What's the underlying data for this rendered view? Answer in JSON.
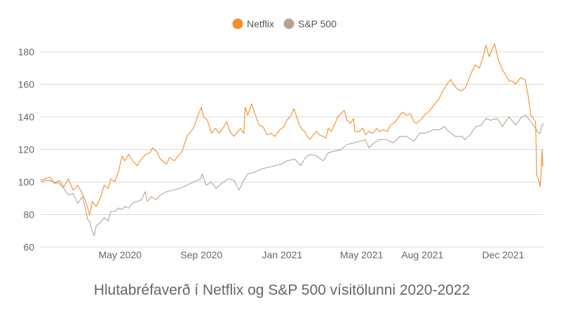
{
  "chart_data": {
    "type": "line",
    "title": "Hlutabréfaverð í Netflix og S&P 500 vísitölunni 2020-2022",
    "xlabel": "",
    "ylabel": "",
    "ylim": [
      60,
      185
    ],
    "yticks": [
      60,
      80,
      100,
      120,
      140,
      160,
      180
    ],
    "xlim": [
      "2020-01-02",
      "2022-01-31"
    ],
    "xticks": [
      {
        "date": "2020-05-01",
        "label": "May 2020"
      },
      {
        "date": "2020-09-01",
        "label": "Sep 2020"
      },
      {
        "date": "2021-01-01",
        "label": "Jan 2021"
      },
      {
        "date": "2021-05-01",
        "label": "May 2021"
      },
      {
        "date": "2021-08-01",
        "label": "Aug 2021"
      },
      {
        "date": "2021-12-01",
        "label": "Dec 2021"
      }
    ],
    "grid": true,
    "legend": "top-center",
    "series": [
      {
        "name": "Netflix",
        "color": "#f28e2b",
        "points": [
          [
            "2020-01-02",
            101
          ],
          [
            "2020-01-09",
            102
          ],
          [
            "2020-01-16",
            103
          ],
          [
            "2020-01-23",
            99
          ],
          [
            "2020-01-30",
            101
          ],
          [
            "2020-02-06",
            97
          ],
          [
            "2020-02-13",
            102
          ],
          [
            "2020-02-20",
            95
          ],
          [
            "2020-02-27",
            98
          ],
          [
            "2020-03-05",
            93
          ],
          [
            "2020-03-10",
            88
          ],
          [
            "2020-03-16",
            80
          ],
          [
            "2020-03-20",
            88
          ],
          [
            "2020-03-26",
            85
          ],
          [
            "2020-04-01",
            90
          ],
          [
            "2020-04-07",
            98
          ],
          [
            "2020-04-13",
            96
          ],
          [
            "2020-04-17",
            102
          ],
          [
            "2020-04-23",
            100
          ],
          [
            "2020-04-29",
            107
          ],
          [
            "2020-05-04",
            116
          ],
          [
            "2020-05-08",
            113
          ],
          [
            "2020-05-14",
            117
          ],
          [
            "2020-05-20",
            113
          ],
          [
            "2020-05-27",
            110
          ],
          [
            "2020-06-02",
            114
          ],
          [
            "2020-06-09",
            117
          ],
          [
            "2020-06-15",
            118
          ],
          [
            "2020-06-19",
            121
          ],
          [
            "2020-06-25",
            119
          ],
          [
            "2020-07-01",
            114
          ],
          [
            "2020-07-07",
            112
          ],
          [
            "2020-07-10",
            111
          ],
          [
            "2020-07-15",
            115
          ],
          [
            "2020-07-22",
            113
          ],
          [
            "2020-07-28",
            116
          ],
          [
            "2020-08-03",
            119
          ],
          [
            "2020-08-10",
            128
          ],
          [
            "2020-08-14",
            130
          ],
          [
            "2020-08-20",
            133
          ],
          [
            "2020-08-26",
            140
          ],
          [
            "2020-09-01",
            146
          ],
          [
            "2020-09-04",
            140
          ],
          [
            "2020-09-10",
            138
          ],
          [
            "2020-09-16",
            130
          ],
          [
            "2020-09-22",
            133
          ],
          [
            "2020-09-28",
            130
          ],
          [
            "2020-10-05",
            134
          ],
          [
            "2020-10-09",
            137
          ],
          [
            "2020-10-14",
            131
          ],
          [
            "2020-10-20",
            128
          ],
          [
            "2020-10-26",
            131
          ],
          [
            "2020-10-30",
            133
          ],
          [
            "2020-11-04",
            130
          ],
          [
            "2020-11-06",
            146
          ],
          [
            "2020-11-10",
            141
          ],
          [
            "2020-11-16",
            148
          ],
          [
            "2020-11-20",
            143
          ],
          [
            "2020-11-27",
            135
          ],
          [
            "2020-12-03",
            134
          ],
          [
            "2020-12-09",
            129
          ],
          [
            "2020-12-15",
            130
          ],
          [
            "2020-12-21",
            128
          ],
          [
            "2020-12-28",
            132
          ],
          [
            "2021-01-04",
            134
          ],
          [
            "2021-01-08",
            138
          ],
          [
            "2021-01-13",
            140
          ],
          [
            "2021-01-19",
            145
          ],
          [
            "2021-01-22",
            141
          ],
          [
            "2021-01-27",
            135
          ],
          [
            "2021-02-01",
            132
          ],
          [
            "2021-02-04",
            131
          ],
          [
            "2021-02-08",
            128
          ],
          [
            "2021-02-12",
            126
          ],
          [
            "2021-02-17",
            129
          ],
          [
            "2021-02-22",
            131
          ],
          [
            "2021-02-26",
            129
          ],
          [
            "2021-03-04",
            128
          ],
          [
            "2021-03-08",
            127
          ],
          [
            "2021-03-12",
            133
          ],
          [
            "2021-03-16",
            131
          ],
          [
            "2021-03-22",
            136
          ],
          [
            "2021-03-26",
            140
          ],
          [
            "2021-03-31",
            142
          ],
          [
            "2021-04-05",
            144
          ],
          [
            "2021-04-09",
            138
          ],
          [
            "2021-04-14",
            136
          ],
          [
            "2021-04-19",
            139
          ],
          [
            "2021-04-21",
            131
          ],
          [
            "2021-04-27",
            131
          ],
          [
            "2021-05-03",
            133
          ],
          [
            "2021-05-07",
            129
          ],
          [
            "2021-05-12",
            131
          ],
          [
            "2021-05-18",
            130
          ],
          [
            "2021-05-24",
            133
          ],
          [
            "2021-05-28",
            131
          ],
          [
            "2021-06-03",
            132
          ],
          [
            "2021-06-09",
            131
          ],
          [
            "2021-06-14",
            135
          ],
          [
            "2021-06-21",
            137
          ],
          [
            "2021-06-28",
            141
          ],
          [
            "2021-07-02",
            143
          ],
          [
            "2021-07-08",
            141
          ],
          [
            "2021-07-14",
            142
          ],
          [
            "2021-07-19",
            137
          ],
          [
            "2021-07-23",
            136
          ],
          [
            "2021-07-29",
            138
          ],
          [
            "2021-08-04",
            141
          ],
          [
            "2021-08-10",
            143
          ],
          [
            "2021-08-16",
            146
          ],
          [
            "2021-08-20",
            148
          ],
          [
            "2021-08-26",
            151
          ],
          [
            "2021-09-01",
            156
          ],
          [
            "2021-09-07",
            160
          ],
          [
            "2021-09-13",
            163
          ],
          [
            "2021-09-17",
            160
          ],
          [
            "2021-09-23",
            157
          ],
          [
            "2021-09-29",
            156
          ],
          [
            "2021-10-05",
            158
          ],
          [
            "2021-10-11",
            164
          ],
          [
            "2021-10-15",
            168
          ],
          [
            "2021-10-20",
            172
          ],
          [
            "2021-10-26",
            170
          ],
          [
            "2021-11-01",
            177
          ],
          [
            "2021-11-05",
            184
          ],
          [
            "2021-11-10",
            177
          ],
          [
            "2021-11-15",
            182
          ],
          [
            "2021-11-18",
            185
          ],
          [
            "2021-11-24",
            175
          ],
          [
            "2021-11-30",
            169
          ],
          [
            "2021-12-06",
            165
          ],
          [
            "2021-12-10",
            162
          ],
          [
            "2021-12-15",
            162
          ],
          [
            "2021-12-20",
            160
          ],
          [
            "2021-12-27",
            164
          ],
          [
            "2022-01-03",
            163
          ],
          [
            "2022-01-07",
            155
          ],
          [
            "2022-01-12",
            141
          ],
          [
            "2022-01-14",
            140
          ],
          [
            "2022-01-19",
            137
          ],
          [
            "2022-01-21",
            104
          ],
          [
            "2022-01-24",
            101
          ],
          [
            "2022-01-26",
            97
          ],
          [
            "2022-01-28",
            109
          ],
          [
            "2022-01-29",
            120
          ],
          [
            "2022-01-30",
            110
          ],
          [
            "2022-01-31",
            110
          ]
        ]
      },
      {
        "name": "S&P 500",
        "color": "#b8a393",
        "points": [
          [
            "2020-01-02",
            100
          ],
          [
            "2020-01-09",
            101
          ],
          [
            "2020-01-16",
            101
          ],
          [
            "2020-01-23",
            100
          ],
          [
            "2020-01-30",
            99
          ],
          [
            "2020-02-06",
            96
          ],
          [
            "2020-02-13",
            92
          ],
          [
            "2020-02-20",
            93
          ],
          [
            "2020-02-27",
            87
          ],
          [
            "2020-03-05",
            91
          ],
          [
            "2020-03-10",
            83
          ],
          [
            "2020-03-13",
            77
          ],
          [
            "2020-03-16",
            76
          ],
          [
            "2020-03-18",
            72
          ],
          [
            "2020-03-20",
            70
          ],
          [
            "2020-03-23",
            67
          ],
          [
            "2020-03-26",
            73
          ],
          [
            "2020-04-01",
            75
          ],
          [
            "2020-04-07",
            78
          ],
          [
            "2020-04-13",
            76
          ],
          [
            "2020-04-17",
            82
          ],
          [
            "2020-04-23",
            82
          ],
          [
            "2020-04-29",
            84
          ],
          [
            "2020-05-04",
            83
          ],
          [
            "2020-05-08",
            85
          ],
          [
            "2020-05-14",
            84
          ],
          [
            "2020-05-20",
            87
          ],
          [
            "2020-05-27",
            88
          ],
          [
            "2020-06-02",
            89
          ],
          [
            "2020-06-08",
            94
          ],
          [
            "2020-06-11",
            88
          ],
          [
            "2020-06-17",
            91
          ],
          [
            "2020-06-24",
            89
          ],
          [
            "2020-07-01",
            92
          ],
          [
            "2020-07-10",
            94
          ],
          [
            "2020-07-20",
            95
          ],
          [
            "2020-07-30",
            96
          ],
          [
            "2020-08-10",
            98
          ],
          [
            "2020-08-20",
            100
          ],
          [
            "2020-08-31",
            102
          ],
          [
            "2020-09-02",
            105
          ],
          [
            "2020-09-08",
            98
          ],
          [
            "2020-09-16",
            100
          ],
          [
            "2020-09-23",
            96
          ],
          [
            "2020-10-01",
            99
          ],
          [
            "2020-10-12",
            102
          ],
          [
            "2020-10-20",
            101
          ],
          [
            "2020-10-28",
            95
          ],
          [
            "2020-11-04",
            101
          ],
          [
            "2020-11-10",
            105
          ],
          [
            "2020-11-20",
            106
          ],
          [
            "2020-12-01",
            108
          ],
          [
            "2020-12-10",
            109
          ],
          [
            "2020-12-21",
            110
          ],
          [
            "2020-12-31",
            111
          ],
          [
            "2021-01-08",
            113
          ],
          [
            "2021-01-20",
            114
          ],
          [
            "2021-01-29",
            110
          ],
          [
            "2021-02-05",
            115
          ],
          [
            "2021-02-12",
            117
          ],
          [
            "2021-02-22",
            116
          ],
          [
            "2021-03-04",
            113
          ],
          [
            "2021-03-12",
            118
          ],
          [
            "2021-03-22",
            119
          ],
          [
            "2021-03-31",
            120
          ],
          [
            "2021-04-09",
            123
          ],
          [
            "2021-04-19",
            124
          ],
          [
            "2021-04-29",
            125
          ],
          [
            "2021-05-07",
            126
          ],
          [
            "2021-05-12",
            121
          ],
          [
            "2021-05-20",
            124
          ],
          [
            "2021-05-28",
            126
          ],
          [
            "2021-06-08",
            126
          ],
          [
            "2021-06-18",
            124
          ],
          [
            "2021-06-28",
            128
          ],
          [
            "2021-07-08",
            128
          ],
          [
            "2021-07-19",
            125
          ],
          [
            "2021-07-28",
            130
          ],
          [
            "2021-08-06",
            130
          ],
          [
            "2021-08-16",
            132
          ],
          [
            "2021-08-26",
            132
          ],
          [
            "2021-09-03",
            134
          ],
          [
            "2021-09-10",
            131
          ],
          [
            "2021-09-20",
            128
          ],
          [
            "2021-09-30",
            128
          ],
          [
            "2021-10-04",
            126
          ],
          [
            "2021-10-12",
            129
          ],
          [
            "2021-10-21",
            134
          ],
          [
            "2021-10-29",
            135
          ],
          [
            "2021-11-05",
            139
          ],
          [
            "2021-11-12",
            138
          ],
          [
            "2021-11-22",
            139
          ],
          [
            "2021-11-30",
            134
          ],
          [
            "2021-12-03",
            136
          ],
          [
            "2021-12-10",
            140
          ],
          [
            "2021-12-20",
            135
          ],
          [
            "2021-12-29",
            140
          ],
          [
            "2022-01-04",
            141
          ],
          [
            "2022-01-10",
            138
          ],
          [
            "2022-01-14",
            136
          ],
          [
            "2022-01-19",
            133
          ],
          [
            "2022-01-24",
            130
          ],
          [
            "2022-01-26",
            130
          ],
          [
            "2022-01-28",
            134
          ],
          [
            "2022-01-31",
            136
          ]
        ]
      }
    ]
  }
}
